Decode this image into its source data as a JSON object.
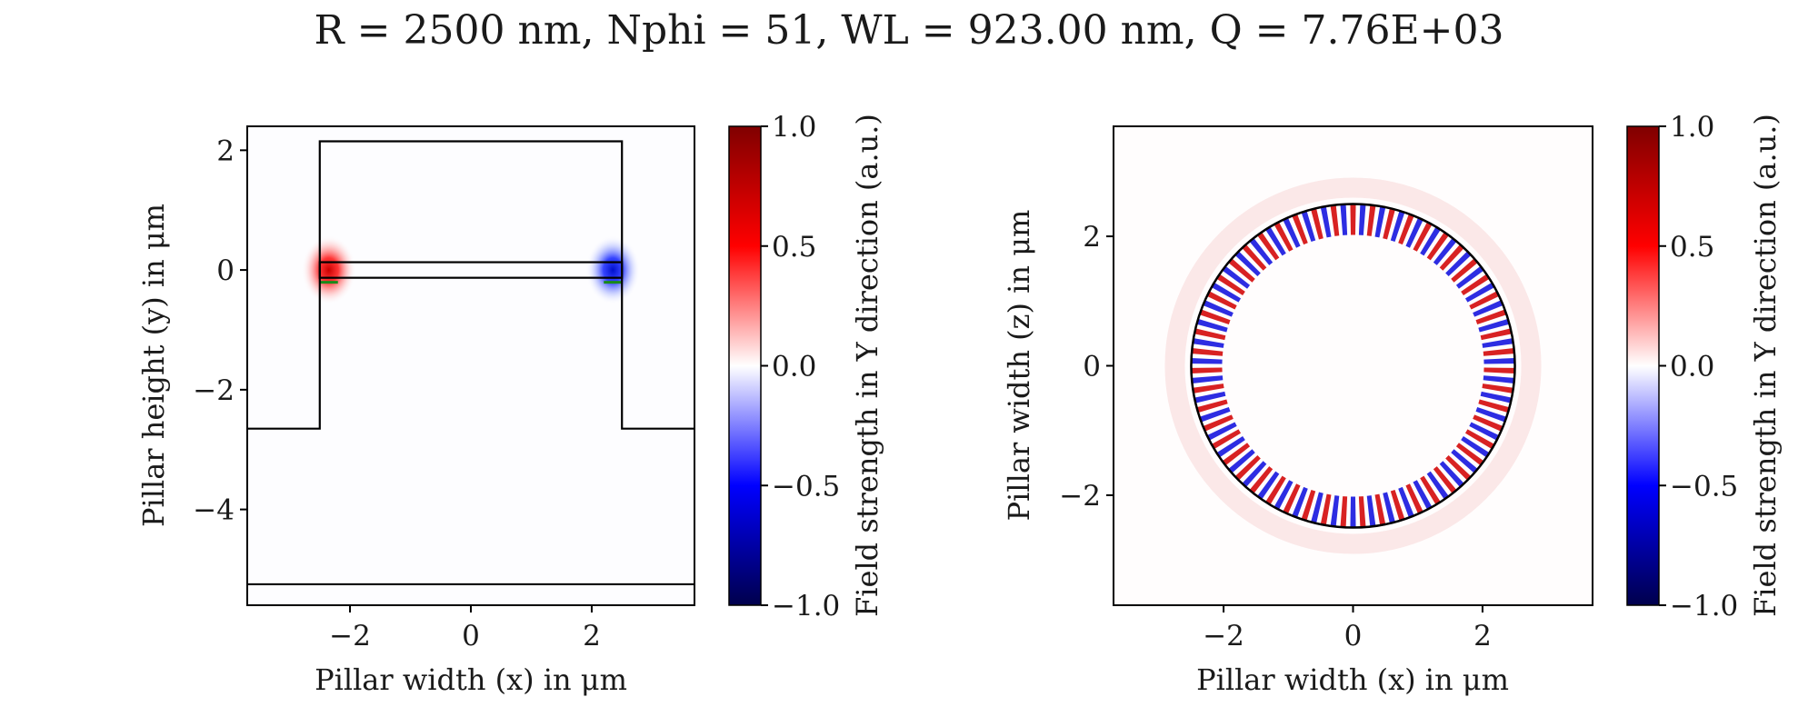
{
  "figure_title": "R = 2500 nm, Nphi = 51, WL = 923.00 nm, Q = 7.76E+03",
  "chart_data": [
    {
      "type": "heatmap",
      "name": "cross-section",
      "xlabel": "Pillar width (x) in μm",
      "ylabel": "Pillar height (y) in μm",
      "xlim": [
        -3.7,
        3.7
      ],
      "ylim": [
        -5.6,
        2.4
      ],
      "x_ticks": [
        -2,
        0,
        2
      ],
      "y_ticks": [
        2,
        0,
        -2,
        -4
      ],
      "outline": {
        "pillar": [
          [
            -2.5,
            -2.65
          ],
          [
            -2.5,
            2.15
          ],
          [
            2.5,
            2.15
          ],
          [
            2.5,
            -2.65
          ]
        ],
        "substrate_top_y": -2.65,
        "substrate_bottom_y": -5.25,
        "layer_y": [
          -0.13,
          0.13
        ]
      },
      "hotspots": [
        {
          "x": -2.35,
          "y": 0.0,
          "value": 1.0
        },
        {
          "x": 2.35,
          "y": 0.0,
          "value": -1.0
        }
      ],
      "colorbar": {
        "label": "Field strength in Y direction (a.u.)",
        "range": [
          -1.0,
          1.0
        ],
        "ticks": [
          "1.0",
          "0.5",
          "0.0",
          "−0.5",
          "−1.0"
        ],
        "colormap": "seismic"
      }
    },
    {
      "type": "heatmap",
      "name": "top-view",
      "xlabel": "Pillar width (x) in μm",
      "ylabel": "Pillar width (z) in μm",
      "xlim": [
        -3.7,
        3.7
      ],
      "ylim": [
        -3.7,
        3.7
      ],
      "x_ticks": [
        -2,
        0,
        2
      ],
      "y_ticks": [
        2,
        0,
        -2
      ],
      "outline": {
        "circle_radius": 2.5
      },
      "ring_mode": {
        "radius": 2.5,
        "lobes": 102,
        "Nphi": 51
      },
      "colorbar": {
        "label": "Field strength in Y direction (a.u.)",
        "range": [
          -1.0,
          1.0
        ],
        "ticks": [
          "1.0",
          "0.5",
          "0.0",
          "−0.5",
          "−1.0"
        ],
        "colormap": "seismic"
      }
    }
  ],
  "colors": {
    "positive": "#cc0000",
    "negative": "#0010cc",
    "positive_max": "#800000",
    "negative_max": "#00004c",
    "neutral": "#ffffff",
    "outline": "#000000",
    "marker": "#1a8a1a"
  }
}
